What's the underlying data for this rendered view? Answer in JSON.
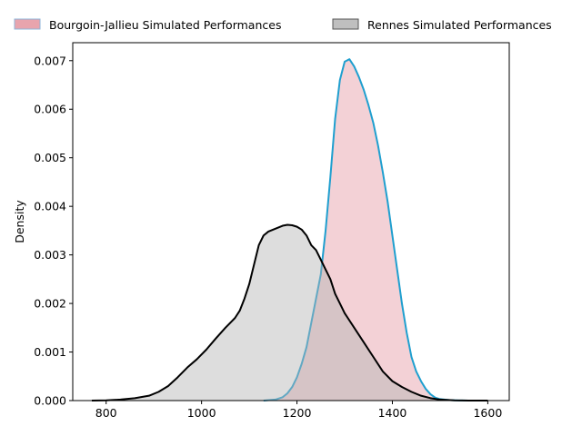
{
  "chart_data": {
    "type": "area",
    "title": "",
    "xlabel": "",
    "ylabel": "Density",
    "xlim": [
      730,
      1645
    ],
    "ylim": [
      0,
      0.00737
    ],
    "xticks": [
      800,
      1000,
      1200,
      1400,
      1600
    ],
    "xtick_labels": [
      "800",
      "1000",
      "1200",
      "1400",
      "1600"
    ],
    "yticks": [
      0,
      0.001,
      0.002,
      0.003,
      0.004,
      0.005,
      0.006,
      0.007
    ],
    "ytick_labels": [
      "0.000",
      "0.001",
      "0.002",
      "0.003",
      "0.004",
      "0.005",
      "0.006",
      "0.007"
    ],
    "grid": false,
    "legend_position": "top",
    "series": [
      {
        "name": "Bourgoin-Jallieu Simulated Performances",
        "line_color": "#1f9fcf",
        "fill_color": "#e8a4ad",
        "fill_opacity": 0.5,
        "x": [
          1130,
          1155,
          1170,
          1180,
          1190,
          1200,
          1210,
          1220,
          1230,
          1240,
          1250,
          1260,
          1270,
          1280,
          1290,
          1300,
          1310,
          1320,
          1330,
          1340,
          1350,
          1360,
          1370,
          1380,
          1390,
          1400,
          1410,
          1420,
          1430,
          1440,
          1450,
          1460,
          1470,
          1480,
          1490,
          1500,
          1520,
          1540,
          1560
        ],
        "y": [
          0,
          2e-05,
          7e-05,
          0.00015,
          0.00028,
          0.00048,
          0.00076,
          0.0011,
          0.0016,
          0.0021,
          0.0026,
          0.0035,
          0.0046,
          0.0058,
          0.0066,
          0.00698,
          0.00703,
          0.00688,
          0.00666,
          0.0064,
          0.00608,
          0.00572,
          0.00525,
          0.0047,
          0.0041,
          0.0034,
          0.0027,
          0.002,
          0.0014,
          0.0009,
          0.0006,
          0.0004,
          0.00024,
          0.00013,
          6e-05,
          3e-05,
          1e-05,
          3e-06,
          0
        ]
      },
      {
        "name": "Rennes Simulated Performances",
        "line_color": "#000000",
        "fill_color": "#b4b4b4",
        "fill_opacity": 0.45,
        "x": [
          770,
          800,
          830,
          860,
          890,
          910,
          930,
          950,
          970,
          990,
          1010,
          1030,
          1050,
          1070,
          1080,
          1090,
          1100,
          1110,
          1120,
          1130,
          1140,
          1150,
          1160,
          1170,
          1180,
          1190,
          1200,
          1210,
          1220,
          1230,
          1240,
          1250,
          1260,
          1270,
          1280,
          1290,
          1300,
          1320,
          1340,
          1360,
          1380,
          1400,
          1420,
          1440,
          1460,
          1480,
          1500,
          1530,
          1560,
          1600
        ],
        "y": [
          0,
          5e-06,
          2e-05,
          5e-05,
          0.0001,
          0.00018,
          0.0003,
          0.00048,
          0.00068,
          0.00085,
          0.00105,
          0.00128,
          0.0015,
          0.0017,
          0.00185,
          0.0021,
          0.0024,
          0.0028,
          0.0032,
          0.0034,
          0.00348,
          0.00352,
          0.00356,
          0.0036,
          0.00362,
          0.00361,
          0.00358,
          0.00352,
          0.0034,
          0.0032,
          0.0031,
          0.0029,
          0.0027,
          0.0025,
          0.0022,
          0.002,
          0.0018,
          0.0015,
          0.0012,
          0.0009,
          0.0006,
          0.0004,
          0.00028,
          0.00018,
          0.0001,
          5e-05,
          2e-05,
          5e-06,
          1e-06,
          0
        ]
      }
    ]
  }
}
